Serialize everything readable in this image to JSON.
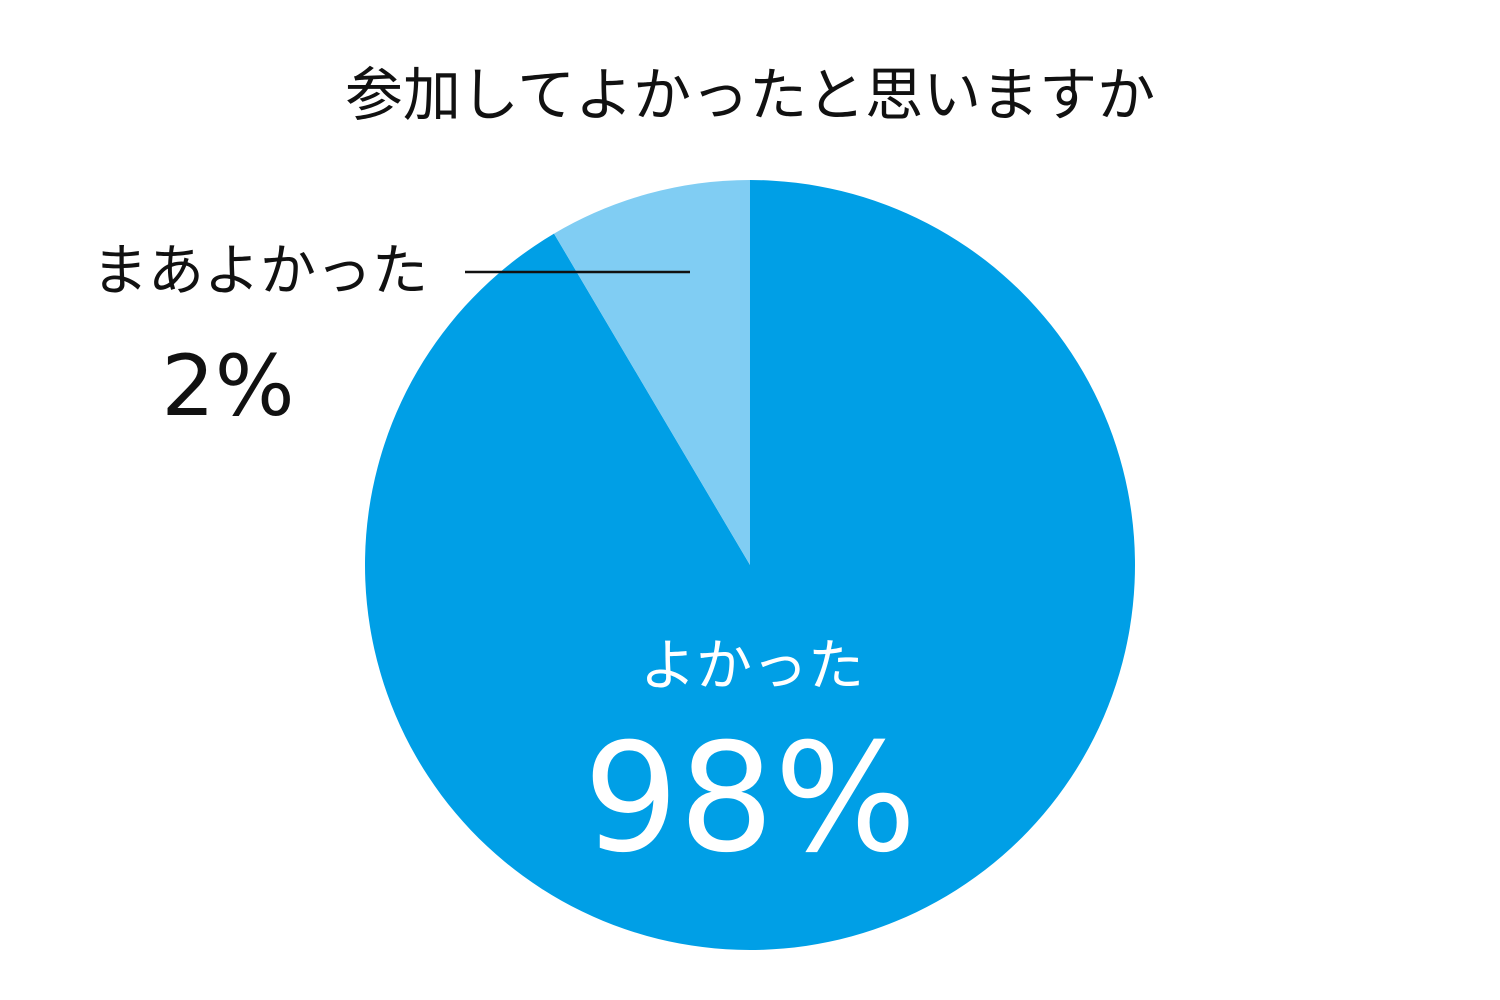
{
  "chart_data": {
    "type": "pie",
    "title": "参加してよかったと思いますか",
    "slices": [
      {
        "label": "よかった",
        "value": 98,
        "display": "98%",
        "color": "#009fe6"
      },
      {
        "label": "まあよかった",
        "value": 2,
        "display": "2%",
        "color": "#80cdf3"
      }
    ],
    "legend": "none",
    "unit": "%"
  }
}
